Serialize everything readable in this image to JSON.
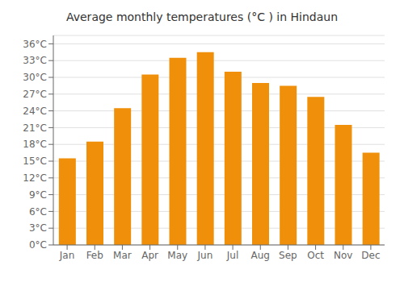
{
  "chart_data": {
    "type": "bar",
    "title": "Average monthly temperatures (°C ) in Hindaun",
    "categories": [
      "Jan",
      "Feb",
      "Mar",
      "Apr",
      "May",
      "Jun",
      "Jul",
      "Aug",
      "Sep",
      "Oct",
      "Nov",
      "Dec"
    ],
    "values": [
      15.5,
      18.5,
      24.5,
      30.5,
      33.5,
      34.5,
      31.0,
      29.0,
      28.5,
      26.5,
      21.5,
      16.5
    ],
    "color": "#F0900A",
    "ylim": [
      0,
      37.5
    ],
    "yticks": [
      {
        "value": 0,
        "label": "0°C"
      },
      {
        "value": 3,
        "label": "3°C"
      },
      {
        "value": 6,
        "label": "6°C"
      },
      {
        "value": 9,
        "label": "9°C"
      },
      {
        "value": 12,
        "label": "12°C"
      },
      {
        "value": 15,
        "label": "15°C"
      },
      {
        "value": 18,
        "label": "18°C"
      },
      {
        "value": 21,
        "label": "21°C"
      },
      {
        "value": 24,
        "label": "24°C"
      },
      {
        "value": 27,
        "label": "27°C"
      },
      {
        "value": 30,
        "label": "30°C"
      },
      {
        "value": 33,
        "label": "33°C"
      },
      {
        "value": 36,
        "label": "36°C"
      }
    ],
    "grid": true
  }
}
